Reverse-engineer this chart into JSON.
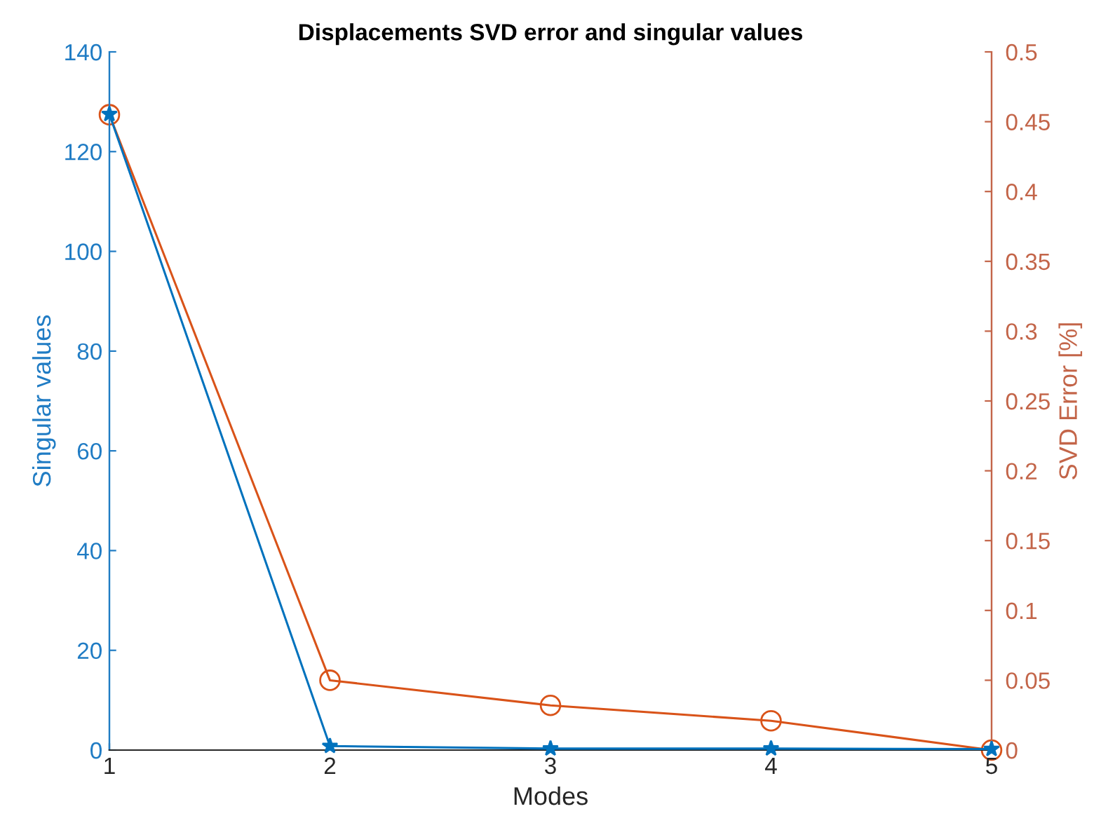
{
  "chart_data": {
    "type": "line",
    "title": "Displacements SVD error and singular values",
    "xlabel": "Modes",
    "ylabel": "Singular values",
    "y2label": "SVD Error [%]",
    "x": [
      1,
      2,
      3,
      4,
      5
    ],
    "series": [
      {
        "color": "#0072bd",
        "marker": "star",
        "values": [
          127.5,
          0.8,
          0.3,
          0.3,
          0.2
        ]
      },
      {
        "color": "#d95319",
        "marker": "circle",
        "axis": "y2",
        "values": [
          0.455,
          0.05,
          0.032,
          0.021,
          0
        ]
      }
    ],
    "xlim": [
      1,
      5
    ],
    "xticks": [
      1,
      2,
      3,
      4,
      5
    ],
    "ylim": [
      0,
      140
    ],
    "yticks": [
      0,
      20,
      40,
      60,
      80,
      100,
      120,
      140
    ],
    "y2lim": [
      0,
      0.5
    ],
    "y2ticks": [
      0,
      0.05,
      0.1,
      0.15,
      0.2,
      0.25,
      0.3,
      0.35,
      0.4,
      0.45,
      0.5
    ],
    "grid": false,
    "legend": false,
    "line_style": "solid"
  }
}
